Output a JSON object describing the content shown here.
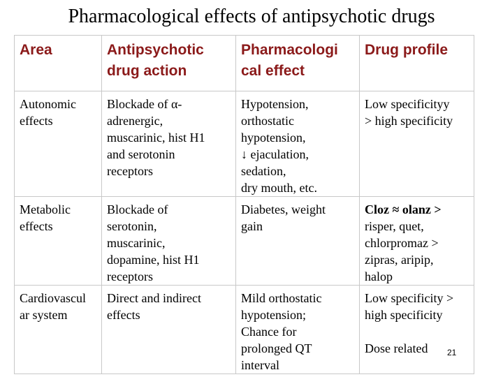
{
  "title": "Pharmacological effects of antipsychotic drugs",
  "table": {
    "header": [
      [
        "Area"
      ],
      [
        "Antipsychotic",
        "drug action"
      ],
      [
        "Pharmacologi",
        "cal effect"
      ],
      [
        "Drug profile"
      ]
    ],
    "rows": [
      [
        [
          [
            "Autonomic",
            "effects"
          ]
        ],
        [
          [
            "Blockade of α-",
            "adrenergic,",
            "muscarinic, hist H1",
            "and serotonin",
            "receptors"
          ]
        ],
        [
          [
            "Hypotension,",
            "orthostatic",
            "hypotension,",
            "↓ ejaculation,",
            "sedation,",
            "dry mouth, etc."
          ]
        ],
        [
          [
            "Low specificityy",
            "> high specificity"
          ]
        ]
      ],
      [
        [
          [
            "Metabolic",
            "effects"
          ]
        ],
        [
          [
            "Blockade of",
            "serotonin,",
            "muscarinic,",
            "dopamine, hist H1",
            "receptors"
          ]
        ],
        [
          [
            "Diabetes, weight",
            "gain"
          ]
        ],
        [
          [
            "Cloz ≈ olanz >"
          ],
          [
            "risper, quet,",
            "chlorpromaz >",
            "zipras, aripip,",
            "halop"
          ]
        ]
      ],
      [
        [
          [
            "Cardiovascul",
            "ar system"
          ]
        ],
        [
          [
            "Direct and indirect",
            "effects"
          ]
        ],
        [
          [
            "Mild orthostatic",
            "hypotension;",
            "Chance for",
            "prolonged QT",
            "interval"
          ]
        ],
        [
          [
            "Low specificity >",
            "high specificity"
          ],
          [
            "Dose related"
          ]
        ]
      ]
    ],
    "bold_paragraphs": [
      [
        1,
        3,
        0
      ]
    ]
  },
  "page_number": "21"
}
